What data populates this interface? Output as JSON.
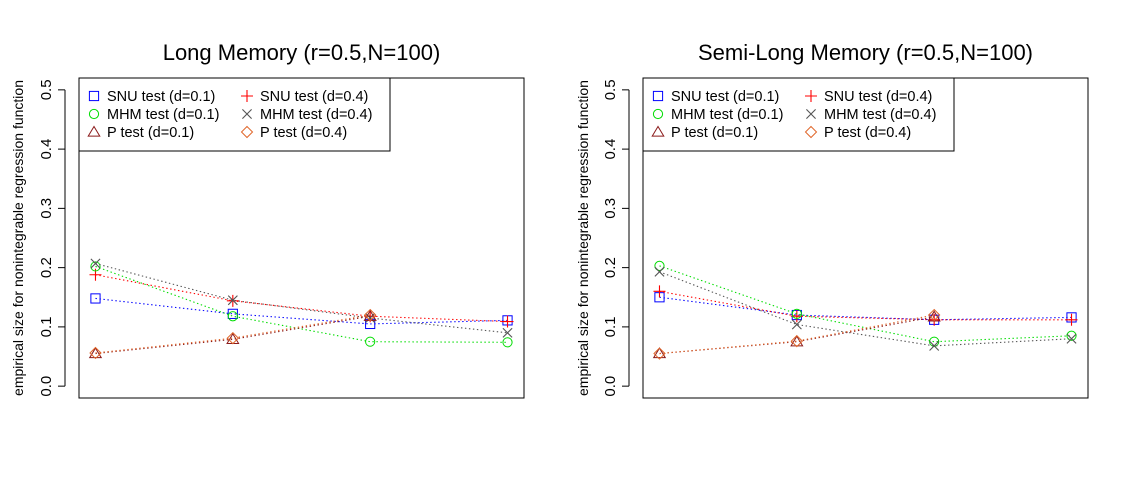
{
  "chart_data": [
    {
      "type": "line",
      "title": "Long Memory (r=0.5,N=100)",
      "xlabel": "",
      "ylabel": "empirical size for nonintegrable regression function",
      "ylim": [
        0,
        0.5
      ],
      "yticks": [
        "0.0",
        "0.1",
        "0.2",
        "0.3",
        "0.4",
        "0.5"
      ],
      "x": [
        1,
        2,
        3,
        4
      ],
      "grid": false,
      "legend_position": "top-left",
      "series": [
        {
          "name": "SNU test (d=0.1)",
          "symbol": "square",
          "color": "#0000ff",
          "values": [
            0.148,
            0.122,
            0.105,
            0.111
          ]
        },
        {
          "name": "SNU test (d=0.4)",
          "symbol": "plus",
          "color": "#ff0000",
          "values": [
            0.188,
            0.144,
            0.118,
            0.109
          ]
        },
        {
          "name": "MHM test (d=0.1)",
          "symbol": "circle",
          "color": "#00dd00",
          "values": [
            0.202,
            0.118,
            0.075,
            0.074
          ]
        },
        {
          "name": "MHM test (d=0.4)",
          "symbol": "cross",
          "color": "#555555",
          "values": [
            0.207,
            0.145,
            0.115,
            0.09
          ]
        },
        {
          "name": "P test (d=0.1)",
          "symbol": "triangle",
          "color": "#8b1a1a",
          "values": [
            0.055,
            0.079,
            0.118,
            null
          ]
        },
        {
          "name": "P test (d=0.4)",
          "symbol": "diamond",
          "color": "#e0662a",
          "values": [
            0.056,
            0.081,
            0.12,
            null
          ]
        }
      ]
    },
    {
      "type": "line",
      "title": "Semi-Long Memory (r=0.5,N=100)",
      "xlabel": "",
      "ylabel": "empirical size for nonintegrable regression function",
      "ylim": [
        0,
        0.5
      ],
      "yticks": [
        "0.0",
        "0.1",
        "0.2",
        "0.3",
        "0.4",
        "0.5"
      ],
      "x": [
        1,
        2,
        3,
        4
      ],
      "grid": false,
      "legend_position": "top-left",
      "series": [
        {
          "name": "SNU test (d=0.1)",
          "symbol": "square",
          "color": "#0000ff",
          "values": [
            0.15,
            0.12,
            0.112,
            0.116
          ]
        },
        {
          "name": "SNU test (d=0.4)",
          "symbol": "plus",
          "color": "#ff0000",
          "values": [
            0.16,
            0.118,
            0.112,
            0.112
          ]
        },
        {
          "name": "MHM test (d=0.1)",
          "symbol": "circle",
          "color": "#00dd00",
          "values": [
            0.203,
            0.122,
            0.075,
            0.085
          ]
        },
        {
          "name": "MHM test (d=0.4)",
          "symbol": "cross",
          "color": "#555555",
          "values": [
            0.193,
            0.104,
            0.068,
            0.08
          ]
        },
        {
          "name": "P test (d=0.1)",
          "symbol": "triangle",
          "color": "#8b1a1a",
          "values": [
            0.055,
            0.075,
            0.117,
            null
          ]
        },
        {
          "name": "P test (d=0.4)",
          "symbol": "diamond",
          "color": "#e0662a",
          "values": [
            0.055,
            0.076,
            0.12,
            null
          ]
        }
      ]
    }
  ]
}
